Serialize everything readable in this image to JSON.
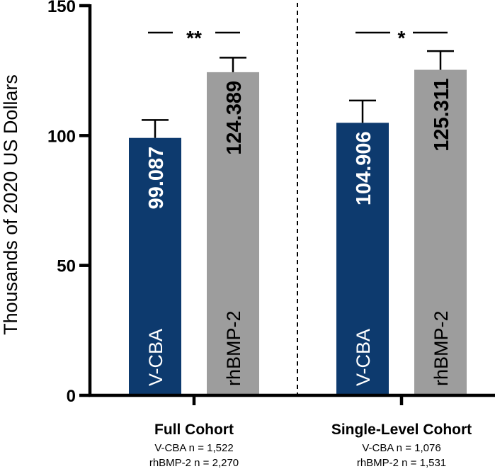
{
  "chart_data": {
    "type": "bar",
    "ylabel": "Thousands of 2020 US Dollars",
    "ylim": [
      0,
      150
    ],
    "yticks": [
      "0",
      "50",
      "100",
      "150"
    ],
    "groups": [
      {
        "title": "Full Cohort",
        "n_lines": [
          "V-CBA n = 1,522",
          "rhBMP-2 n = 2,270"
        ],
        "significance": "**",
        "bars": [
          {
            "name": "V-CBA",
            "value": 99.087,
            "label": "99.087",
            "err_upper": 106,
            "color": "#0d3a6e",
            "label_color": "#ffffff"
          },
          {
            "name": "rhBMP-2",
            "value": 124.389,
            "label": "124.389",
            "err_upper": 130,
            "color": "#9d9d9d",
            "label_color": "#000000"
          }
        ]
      },
      {
        "title": "Single-Level Cohort",
        "n_lines": [
          "V-CBA n = 1,076",
          "rhBMP-2 n = 1,531"
        ],
        "significance": "*",
        "bars": [
          {
            "name": "V-CBA",
            "value": 104.906,
            "label": "104.906",
            "err_upper": 113.5,
            "color": "#0d3a6e",
            "label_color": "#ffffff"
          },
          {
            "name": "rhBMP-2",
            "value": 125.311,
            "label": "125.311",
            "err_upper": 132.5,
            "color": "#9d9d9d",
            "label_color": "#000000"
          }
        ]
      }
    ],
    "grid": false,
    "divider": "dashed vertical line between groups"
  }
}
